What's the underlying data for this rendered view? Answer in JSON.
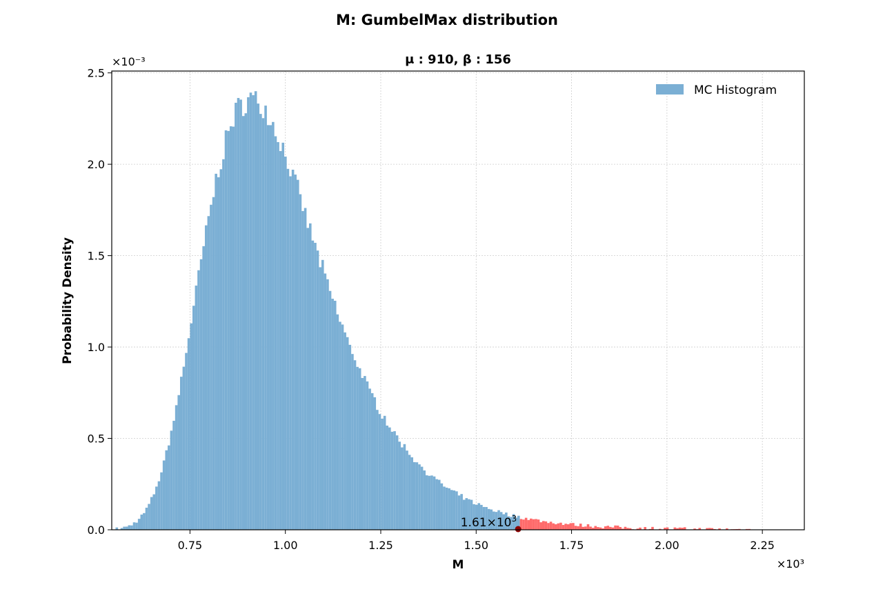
{
  "chart_data": {
    "type": "bar",
    "title": "M: GumbelMax distribution",
    "subtitle": "μ : 910, β : 156",
    "xlabel": "M",
    "ylabel": "Probability Density",
    "x_scale_label": "×10³",
    "y_scale_label": "×10⁻³",
    "xlim": [
      545,
      2360
    ],
    "ylim": [
      0,
      0.00251
    ],
    "x_ticks": [
      {
        "value": 750,
        "label": "0.75"
      },
      {
        "value": 1000,
        "label": "1.00"
      },
      {
        "value": 1250,
        "label": "1.25"
      },
      {
        "value": 1500,
        "label": "1.50"
      },
      {
        "value": 1750,
        "label": "1.75"
      },
      {
        "value": 2000,
        "label": "2.00"
      },
      {
        "value": 2250,
        "label": "2.25"
      }
    ],
    "y_ticks": [
      {
        "value": 0,
        "label": "0.0"
      },
      {
        "value": 0.0005,
        "label": "0.5"
      },
      {
        "value": 0.001,
        "label": "1.0"
      },
      {
        "value": 0.0015,
        "label": "1.5"
      },
      {
        "value": 0.002,
        "label": "2.0"
      },
      {
        "value": 0.0025,
        "label": "2.5"
      }
    ],
    "grid": true,
    "legend_position": "top-right",
    "series": [
      {
        "name": "MC Histogram",
        "color": "#7bafd4"
      }
    ],
    "tail_color": "#ff6b6b",
    "distribution": {
      "mu": 910,
      "beta": 156
    },
    "histogram": {
      "start": 555,
      "bin_width": 6.5,
      "bins": 260,
      "x_max": 2240
    },
    "threshold": {
      "value": 1610,
      "label_mantissa": "1.61",
      "label_exp": "3"
    },
    "marker_color": "#8b0000"
  }
}
